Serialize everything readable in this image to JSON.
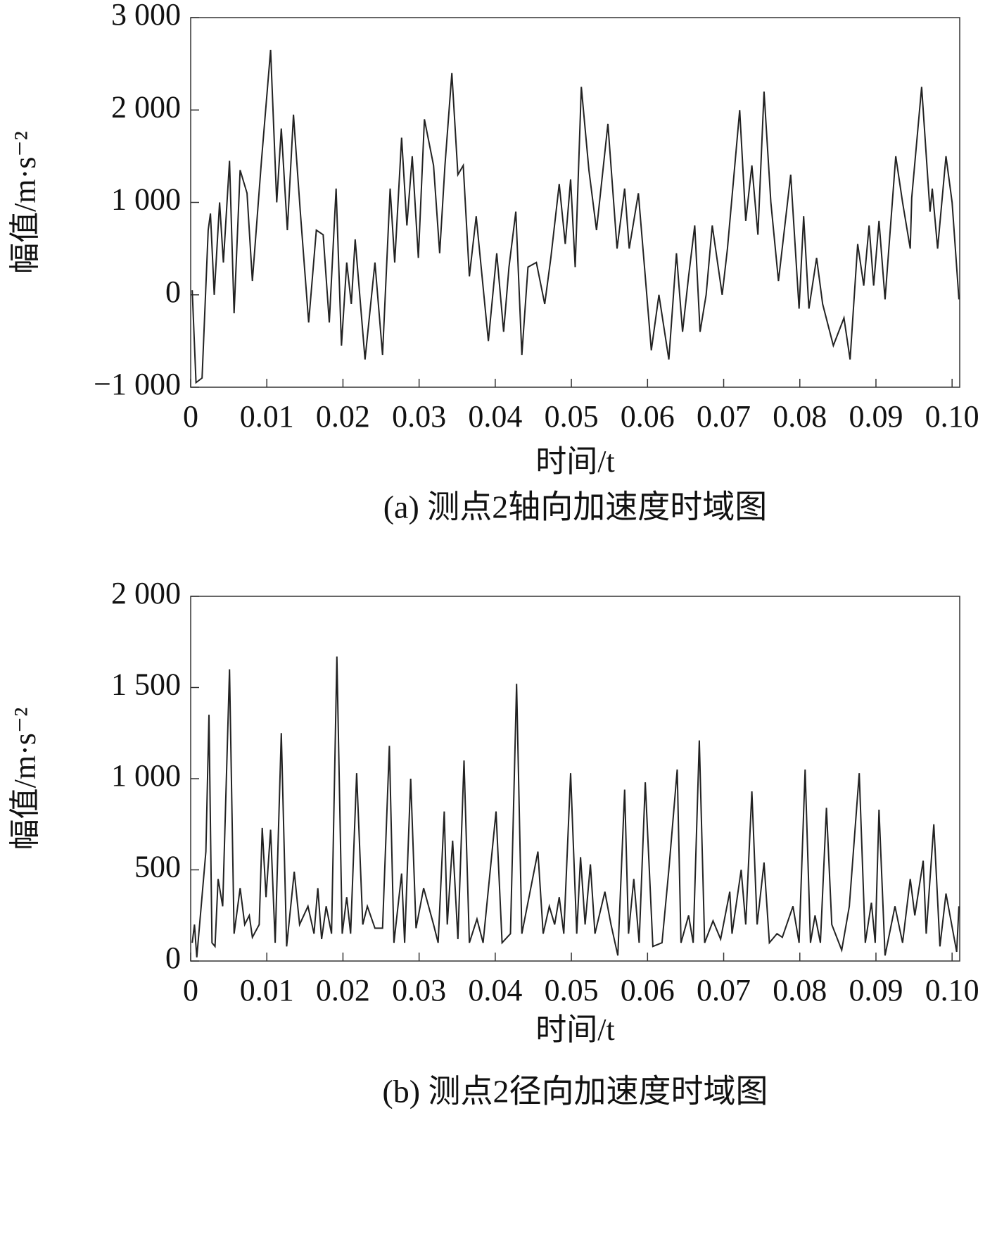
{
  "chart_data": [
    {
      "type": "line",
      "caption": "(a) 测点2轴向加速度时域图",
      "xlabel": "时间/t",
      "ylabel": "幅值/m·s⁻²",
      "color": "#222",
      "xlim": [
        0,
        0.101
      ],
      "xticks": [
        0,
        0.01,
        0.02,
        0.03,
        0.04,
        0.05,
        0.06,
        0.07,
        0.08,
        0.09,
        {
          "value": 0.1,
          "label": "0.10"
        }
      ],
      "ylim": [
        -1000,
        3000
      ],
      "yticks": [
        {
          "value": -1000,
          "label": "−1 000"
        },
        0,
        {
          "value": 1000,
          "label": "1 000"
        },
        {
          "value": 2000,
          "label": "2 000"
        },
        {
          "value": 3000,
          "label": "3 000"
        }
      ],
      "x": [
        0.0002,
        0.0007,
        0.0015,
        0.0023,
        0.0026,
        0.0031,
        0.0038,
        0.0043,
        0.0051,
        0.0057,
        0.0065,
        0.0074,
        0.0081,
        0.0093,
        0.0105,
        0.0113,
        0.0119,
        0.0127,
        0.0135,
        0.0144,
        0.0155,
        0.0165,
        0.0174,
        0.0182,
        0.0191,
        0.0198,
        0.0205,
        0.0211,
        0.0216,
        0.0229,
        0.0242,
        0.0252,
        0.0262,
        0.0268,
        0.0277,
        0.0284,
        0.0291,
        0.0299,
        0.0307,
        0.0319,
        0.0327,
        0.0334,
        0.0343,
        0.0351,
        0.0358,
        0.0366,
        0.0375,
        0.0391,
        0.0402,
        0.0411,
        0.0418,
        0.0427,
        0.0435,
        0.0443,
        0.0454,
        0.0465,
        0.0473,
        0.0484,
        0.0492,
        0.0499,
        0.0505,
        0.0513,
        0.0523,
        0.0533,
        0.0548,
        0.056,
        0.057,
        0.0576,
        0.0588,
        0.0596,
        0.0605,
        0.0615,
        0.0628,
        0.0638,
        0.0646,
        0.0654,
        0.0662,
        0.0669,
        0.0677,
        0.0685,
        0.0698,
        0.0705,
        0.0721,
        0.0729,
        0.0737,
        0.0745,
        0.0753,
        0.0762,
        0.0772,
        0.0788,
        0.0799,
        0.0805,
        0.0812,
        0.0822,
        0.083,
        0.0844,
        0.0858,
        0.0866,
        0.0876,
        0.0884,
        0.0891,
        0.0897,
        0.0904,
        0.0912,
        0.0926,
        0.0935,
        0.0945,
        0.0947,
        0.096,
        0.0971,
        0.0974,
        0.0981,
        0.0992,
        0.1,
        0.1009
      ],
      "values": [
        50,
        -950,
        -900,
        700,
        880,
        0,
        1000,
        350,
        1450,
        -200,
        1350,
        1100,
        150,
        1450,
        2650,
        1000,
        1800,
        700,
        1950,
        900,
        -300,
        700,
        650,
        -300,
        1150,
        -550,
        350,
        -100,
        600,
        -700,
        350,
        -650,
        1150,
        350,
        1700,
        750,
        1500,
        400,
        1900,
        1400,
        450,
        1400,
        2400,
        1300,
        1400,
        200,
        850,
        -500,
        450,
        -400,
        300,
        900,
        -650,
        300,
        350,
        -100,
        400,
        1200,
        550,
        1250,
        300,
        2250,
        1350,
        700,
        1850,
        500,
        1150,
        500,
        1100,
        300,
        -600,
        0,
        -700,
        450,
        -400,
        200,
        750,
        -400,
        0,
        750,
        0,
        500,
        2000,
        800,
        1400,
        650,
        2200,
        1000,
        150,
        1300,
        -150,
        850,
        -150,
        400,
        -100,
        -550,
        -250,
        -700,
        550,
        100,
        750,
        100,
        800,
        -50,
        1500,
        1000,
        500,
        1050,
        2250,
        900,
        1150,
        500,
        1500,
        1000,
        -50
      ]
    },
    {
      "type": "line",
      "caption": "(b) 测点2径向加速度时域图",
      "xlabel": "时间/t",
      "ylabel": "幅值/m·s⁻²",
      "color": "#222",
      "xlim": [
        0,
        0.101
      ],
      "xticks": [
        0,
        0.01,
        0.02,
        0.03,
        0.04,
        0.05,
        0.06,
        0.07,
        0.08,
        0.09,
        {
          "value": 0.1,
          "label": "0.10"
        }
      ],
      "ylim": [
        0,
        2000
      ],
      "yticks": [
        0,
        500,
        {
          "value": 1000,
          "label": "1 000"
        },
        {
          "value": 1500,
          "label": "1 500"
        },
        {
          "value": 2000,
          "label": "2 000"
        }
      ],
      "x": [
        0.0002,
        0.0005,
        0.0008,
        0.002,
        0.0024,
        0.0028,
        0.0032,
        0.0036,
        0.0042,
        0.0051,
        0.0057,
        0.0065,
        0.0071,
        0.0077,
        0.0081,
        0.009,
        0.0094,
        0.0099,
        0.0105,
        0.0111,
        0.0119,
        0.0126,
        0.0136,
        0.0143,
        0.0154,
        0.0162,
        0.0167,
        0.0172,
        0.0178,
        0.0185,
        0.0192,
        0.0199,
        0.0205,
        0.021,
        0.0218,
        0.0226,
        0.0232,
        0.0242,
        0.0252,
        0.0261,
        0.0267,
        0.0277,
        0.0281,
        0.0289,
        0.0296,
        0.0306,
        0.0319,
        0.0325,
        0.0333,
        0.0337,
        0.0344,
        0.0351,
        0.0359,
        0.0366,
        0.0376,
        0.0384,
        0.0401,
        0.0409,
        0.042,
        0.0428,
        0.0435,
        0.0442,
        0.0456,
        0.0463,
        0.0471,
        0.0478,
        0.0484,
        0.049,
        0.0499,
        0.0507,
        0.0512,
        0.0518,
        0.0525,
        0.0531,
        0.0544,
        0.0552,
        0.0561,
        0.057,
        0.0575,
        0.0582,
        0.0589,
        0.0597,
        0.0607,
        0.0619,
        0.0628,
        0.0639,
        0.0644,
        0.0654,
        0.066,
        0.0668,
        0.0675,
        0.0686,
        0.0696,
        0.0708,
        0.0711,
        0.0723,
        0.0729,
        0.0737,
        0.0744,
        0.0753,
        0.076,
        0.077,
        0.0777,
        0.0791,
        0.0799,
        0.0807,
        0.0814,
        0.082,
        0.0827,
        0.0835,
        0.0842,
        0.0855,
        0.0865,
        0.0878,
        0.0886,
        0.0894,
        0.0899,
        0.0904,
        0.0912,
        0.0925,
        0.0935,
        0.0945,
        0.0951,
        0.0962,
        0.0966,
        0.0976,
        0.0984,
        0.0992,
        0.1006,
        0.1009
      ],
      "values": [
        100,
        200,
        20,
        600,
        1350,
        100,
        80,
        450,
        300,
        1600,
        150,
        400,
        200,
        250,
        130,
        200,
        730,
        350,
        720,
        100,
        1250,
        80,
        490,
        200,
        300,
        150,
        400,
        120,
        300,
        150,
        1670,
        150,
        350,
        150,
        1030,
        200,
        300,
        180,
        180,
        1180,
        100,
        480,
        100,
        1000,
        180,
        400,
        200,
        100,
        820,
        200,
        660,
        120,
        1100,
        100,
        230,
        100,
        820,
        100,
        150,
        1520,
        150,
        300,
        600,
        150,
        300,
        200,
        350,
        150,
        1030,
        150,
        570,
        200,
        530,
        150,
        380,
        200,
        30,
        940,
        150,
        450,
        100,
        980,
        80,
        100,
        500,
        1050,
        100,
        250,
        100,
        1210,
        100,
        220,
        120,
        380,
        150,
        500,
        200,
        930,
        200,
        540,
        100,
        150,
        130,
        300,
        100,
        1050,
        100,
        250,
        100,
        840,
        200,
        60,
        300,
        1030,
        100,
        320,
        100,
        830,
        30,
        300,
        100,
        450,
        250,
        550,
        150,
        750,
        80,
        370,
        50,
        300
      ]
    }
  ]
}
